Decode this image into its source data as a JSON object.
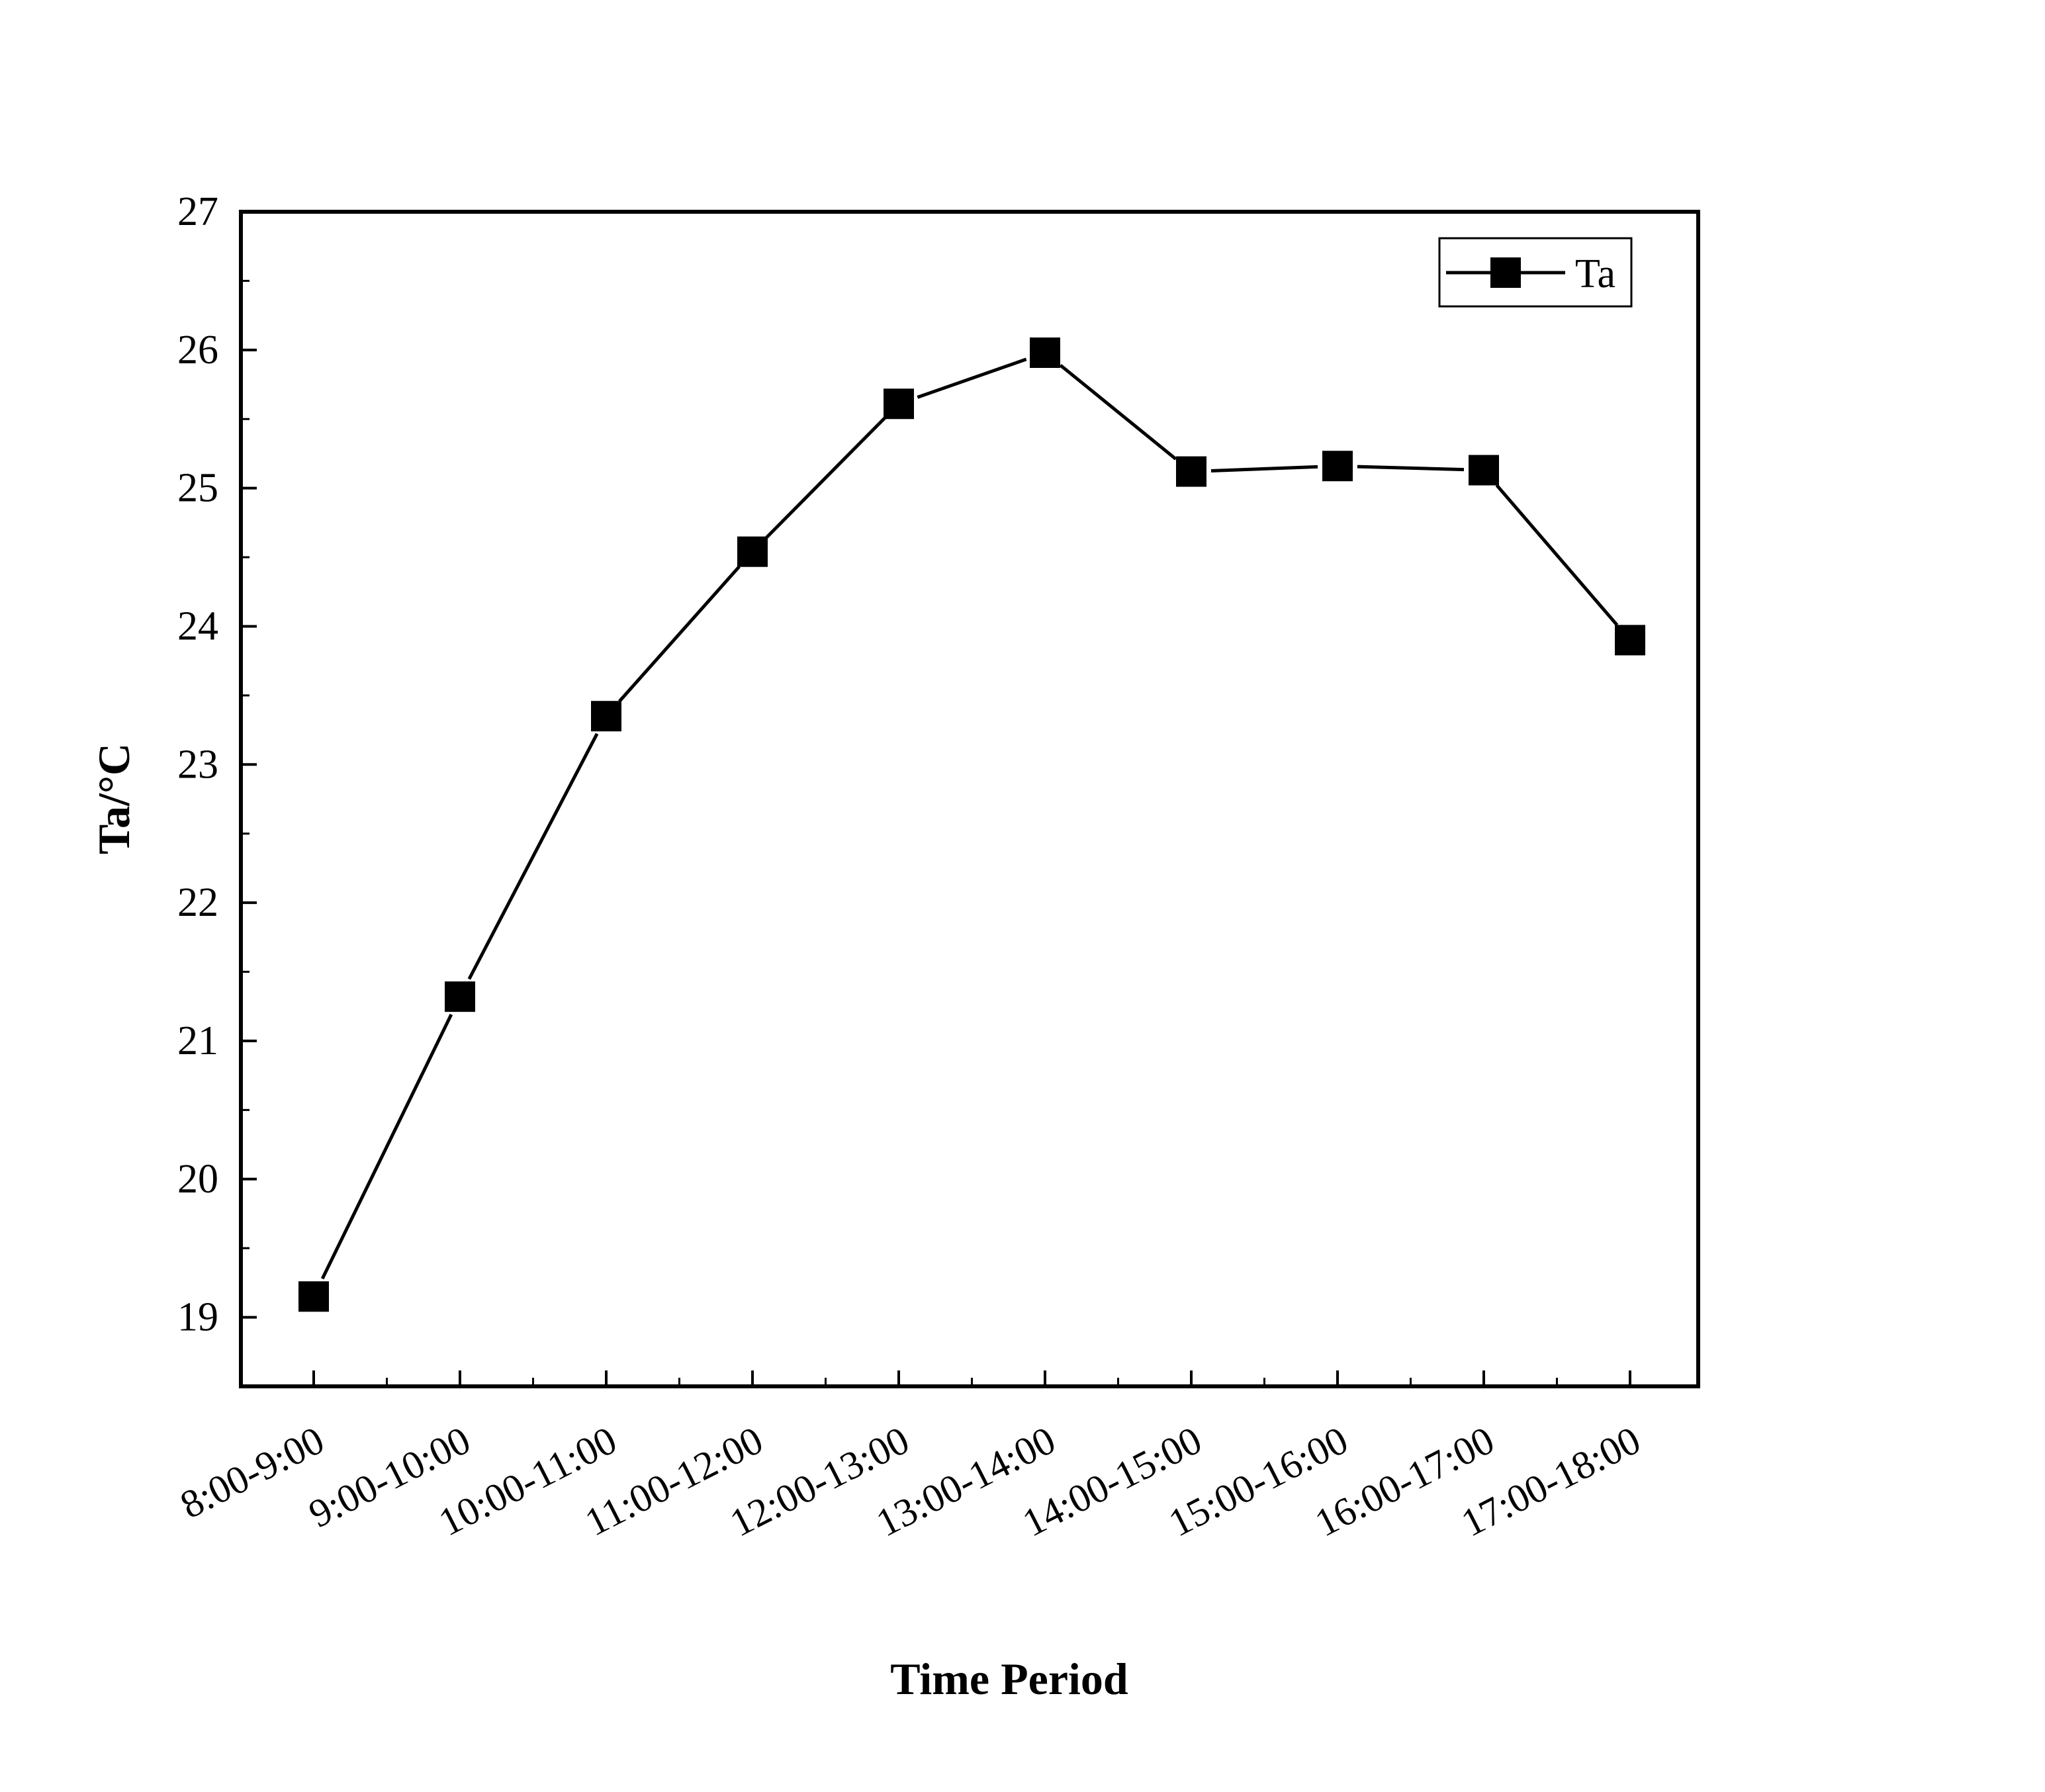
{
  "chart_data": {
    "type": "line",
    "xlabel": "Time Period",
    "ylabel": "Ta/°C",
    "categories": [
      "8:00-9:00",
      "9:00-10:00",
      "10:00-11:00",
      "11:00-12:00",
      "12:00-13:00",
      "13:00-14:00",
      "14:00-15:00",
      "15:00-16:00",
      "16:00-17:00",
      "17:00-18:00"
    ],
    "series": [
      {
        "name": "Ta",
        "values": [
          19.15,
          21.32,
          23.35,
          24.54,
          25.61,
          25.98,
          25.12,
          25.16,
          25.13,
          23.9
        ],
        "color": "#000000",
        "marker": "square"
      }
    ],
    "ylim": [
      18.5,
      27
    ],
    "yticks": [
      19,
      20,
      21,
      22,
      23,
      24,
      25,
      26,
      27
    ],
    "grid": false,
    "legend": "top-right"
  }
}
